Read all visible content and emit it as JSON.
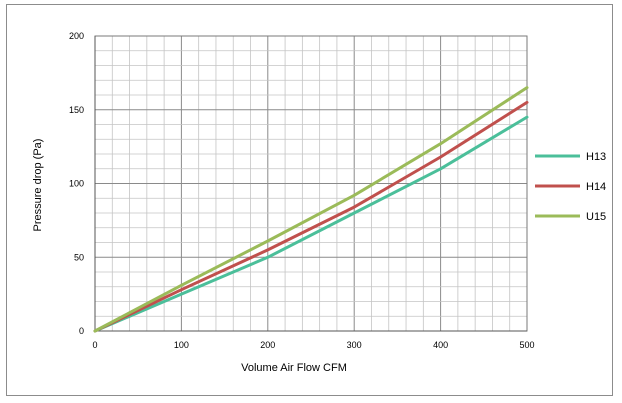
{
  "chart_data": {
    "type": "line",
    "xlabel": "Volume Air Flow  CFM",
    "ylabel": "Pressure drop (Pa)",
    "xlim": [
      0,
      500
    ],
    "ylim": [
      0,
      200
    ],
    "xticks": [
      0,
      100,
      200,
      300,
      400,
      500
    ],
    "yticks": [
      0,
      50,
      100,
      150,
      200
    ],
    "x_minor_step": 20,
    "y_minor_step": 10,
    "grid": true,
    "legend_position": "right",
    "series": [
      {
        "name": "H13",
        "color": "#4bbf9a",
        "x": [
          0,
          100,
          200,
          300,
          400,
          500
        ],
        "values": [
          0,
          25,
          50,
          80,
          110,
          145
        ]
      },
      {
        "name": "H14",
        "color": "#c0504d",
        "x": [
          0,
          100,
          200,
          300,
          400,
          500
        ],
        "values": [
          0,
          28,
          55,
          84,
          118,
          155
        ]
      },
      {
        "name": "U15",
        "color": "#9bbb59",
        "x": [
          0,
          100,
          200,
          300,
          400,
          500
        ],
        "values": [
          0,
          31,
          61,
          92,
          127,
          165
        ]
      }
    ]
  }
}
